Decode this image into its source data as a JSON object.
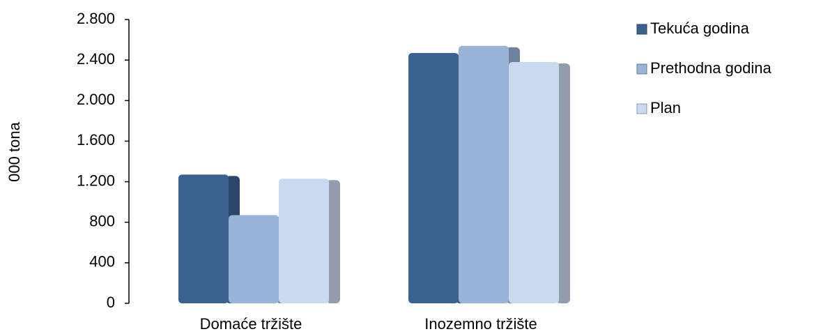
{
  "chart_data": {
    "type": "bar",
    "y_axis_label": "000 tona",
    "categories": [
      "Domaće tržište",
      "Inozemno tržište"
    ],
    "series": [
      {
        "name": "Tekuća godina",
        "color": "#3a6190",
        "values": [
          1270,
          2470
        ]
      },
      {
        "name": "Prethodna godina",
        "color": "#98b4d8",
        "values": [
          870,
          2540
        ]
      },
      {
        "name": "Plan",
        "color": "#c9d9f0",
        "values": [
          1230,
          2380
        ]
      }
    ],
    "ylim": [
      0,
      2800
    ],
    "yticks": [
      0,
      400,
      800,
      {
        "value": 1200,
        "label": "1.200"
      },
      {
        "value": 1600,
        "label": "1.600"
      },
      {
        "value": 2000,
        "label": "2.000"
      },
      {
        "value": 2400,
        "label": "2.400"
      },
      {
        "value": 2800,
        "label": "2.800"
      }
    ],
    "legend": "right"
  }
}
